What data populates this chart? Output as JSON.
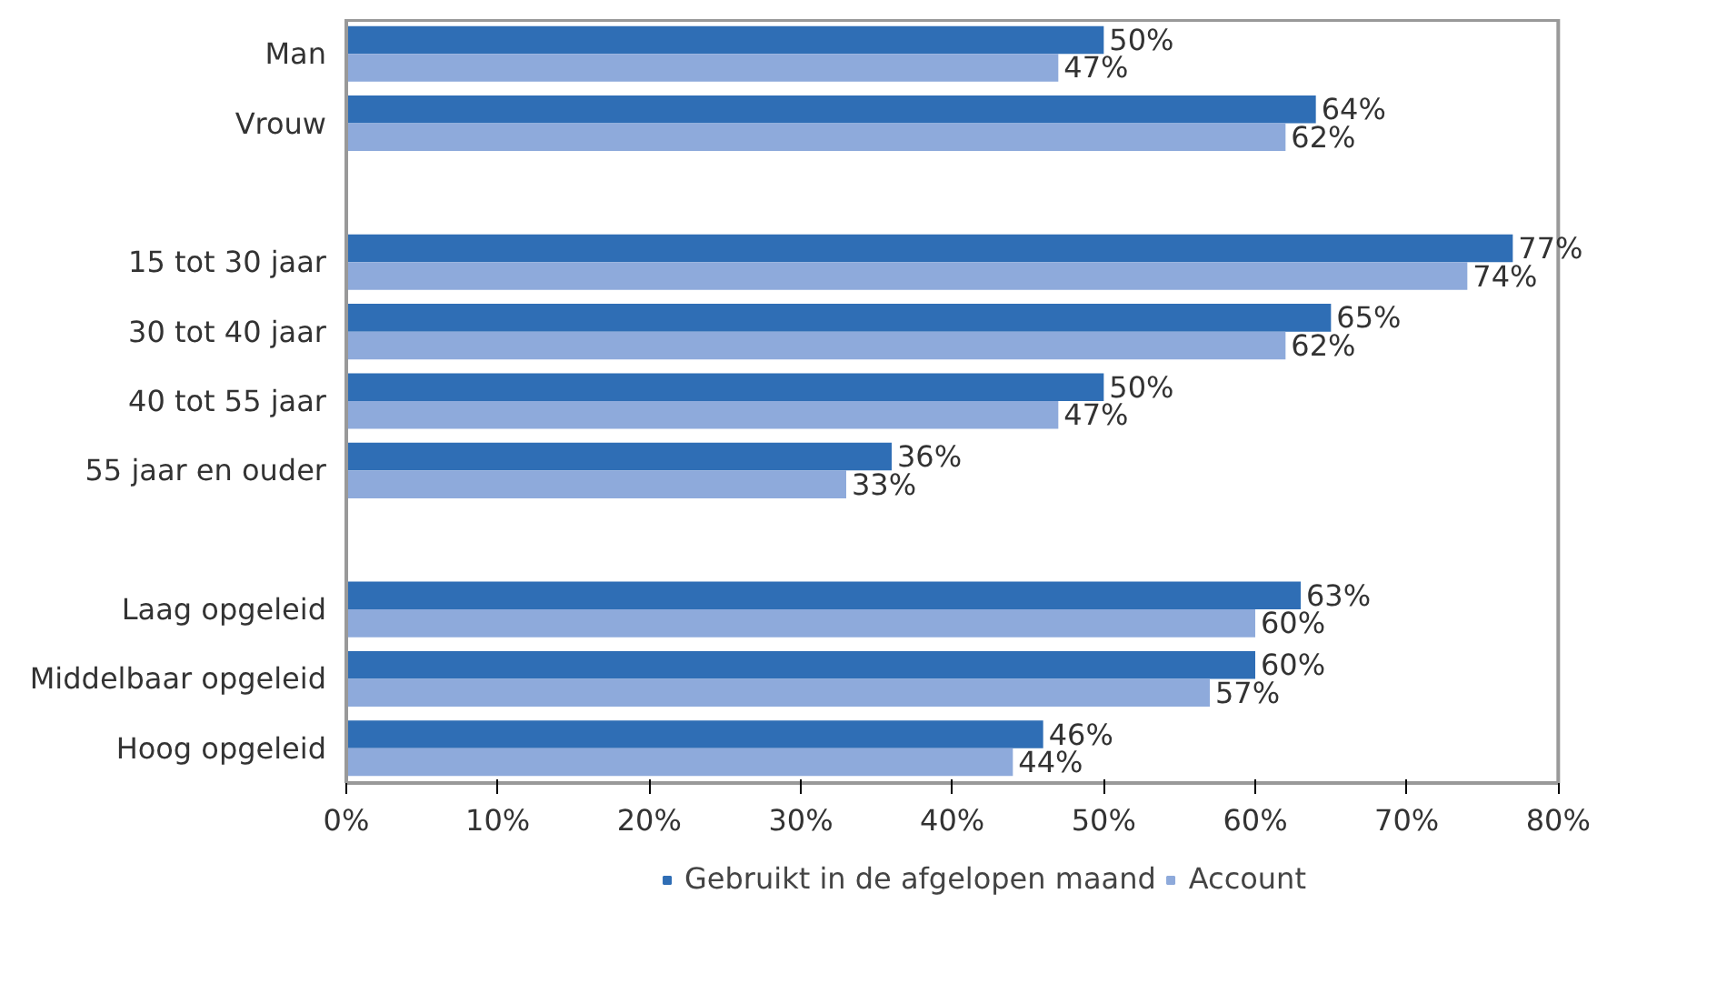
{
  "chart_data": {
    "type": "bar",
    "orientation": "horizontal",
    "categories": [
      "Man",
      "Vrouw",
      null,
      "15 tot 30 jaar",
      "30 tot 40 jaar",
      "40 tot 55 jaar",
      "55 jaar en ouder",
      null,
      "Laag opgeleid",
      "Middelbaar opgeleid",
      "Hoog opgeleid"
    ],
    "series": [
      {
        "name": "Gebruikt in de afgelopen maand",
        "color": "#2f6eb5",
        "values": [
          50,
          64,
          null,
          77,
          65,
          50,
          36,
          null,
          63,
          60,
          46
        ],
        "value_labels": [
          "50%",
          "64%",
          null,
          "77%",
          "65%",
          "50%",
          "36%",
          null,
          "63%",
          "60%",
          "46%"
        ]
      },
      {
        "name": "Account",
        "color": "#8eaadb",
        "values": [
          47,
          62,
          null,
          74,
          62,
          47,
          33,
          null,
          60,
          57,
          44
        ],
        "value_labels": [
          "47%",
          "62%",
          null,
          "74%",
          "62%",
          "47%",
          "33%",
          null,
          "60%",
          "57%",
          "44%"
        ]
      }
    ],
    "xlim": [
      0,
      80
    ],
    "xticks": [
      {
        "value": 0,
        "label": "0%"
      },
      {
        "value": 10,
        "label": "10%"
      },
      {
        "value": 20,
        "label": "20%"
      },
      {
        "value": 30,
        "label": "30%"
      },
      {
        "value": 40,
        "label": "40%"
      },
      {
        "value": 50,
        "label": "50%"
      },
      {
        "value": 60,
        "label": "60%"
      },
      {
        "value": 70,
        "label": "70%"
      },
      {
        "value": 80,
        "label": "80%"
      }
    ],
    "grid": false,
    "legend": "bottom"
  }
}
